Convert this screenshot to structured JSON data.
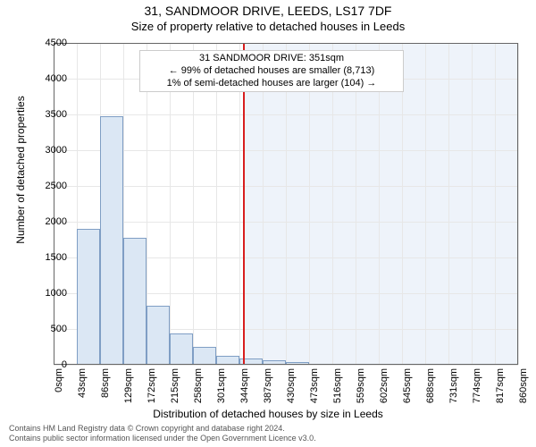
{
  "titles": {
    "main": "31, SANDMOOR DRIVE, LEEDS, LS17 7DF",
    "sub": "Size of property relative to detached houses in Leeds"
  },
  "axes": {
    "y_label": "Number of detached properties",
    "x_label": "Distribution of detached houses by size in Leeds",
    "ylim": [
      0,
      4500
    ],
    "yticks": [
      0,
      500,
      1000,
      1500,
      2000,
      2500,
      3000,
      3500,
      4000,
      4500
    ],
    "xticks_labels": [
      "0sqm",
      "43sqm",
      "86sqm",
      "129sqm",
      "172sqm",
      "215sqm",
      "258sqm",
      "301sqm",
      "344sqm",
      "387sqm",
      "430sqm",
      "473sqm",
      "516sqm",
      "559sqm",
      "602sqm",
      "645sqm",
      "688sqm",
      "731sqm",
      "774sqm",
      "817sqm",
      "860sqm"
    ],
    "xticks_values": [
      0,
      43,
      86,
      129,
      172,
      215,
      258,
      301,
      344,
      387,
      430,
      473,
      516,
      559,
      602,
      645,
      688,
      731,
      774,
      817,
      860
    ],
    "xlim": [
      0,
      860
    ],
    "grid_color": "#e7e7e7",
    "axis_color": "#666666",
    "tick_fontsize": 11,
    "label_fontsize": 12
  },
  "histogram": {
    "type": "histogram",
    "bin_width": 43,
    "bin_edges": [
      0,
      43,
      86,
      129,
      172,
      215,
      258,
      301,
      344,
      387,
      430,
      473,
      516,
      559,
      602,
      645,
      688,
      731,
      774,
      817,
      860
    ],
    "counts": [
      0,
      1900,
      3480,
      1770,
      830,
      440,
      250,
      130,
      90,
      60,
      40,
      0,
      0,
      0,
      0,
      0,
      0,
      0,
      0,
      0
    ],
    "bar_fill": "#dbe7f4",
    "bar_border": "#7f9ec4",
    "bar_border_width": 1
  },
  "marker": {
    "value_sqm": 351,
    "line_color": "#d81e1e",
    "line_width": 2,
    "shade_color": "#eef3fa",
    "info_lines": [
      "31 SANDMOOR DRIVE: 351sqm",
      "← 99% of detached houses are smaller (8,713)",
      "1% of semi-detached houses are larger (104) →"
    ],
    "info_border": "#cccccc",
    "info_bg": "#ffffff"
  },
  "footer": {
    "line1": "Contains HM Land Registry data © Crown copyright and database right 2024.",
    "line2": "Contains public sector information licensed under the Open Government Licence v3.0."
  },
  "style": {
    "background": "#ffffff",
    "title_fontsize_main": 14,
    "title_fontsize_sub": 13,
    "info_fontsize": 11,
    "footer_fontsize": 9
  }
}
